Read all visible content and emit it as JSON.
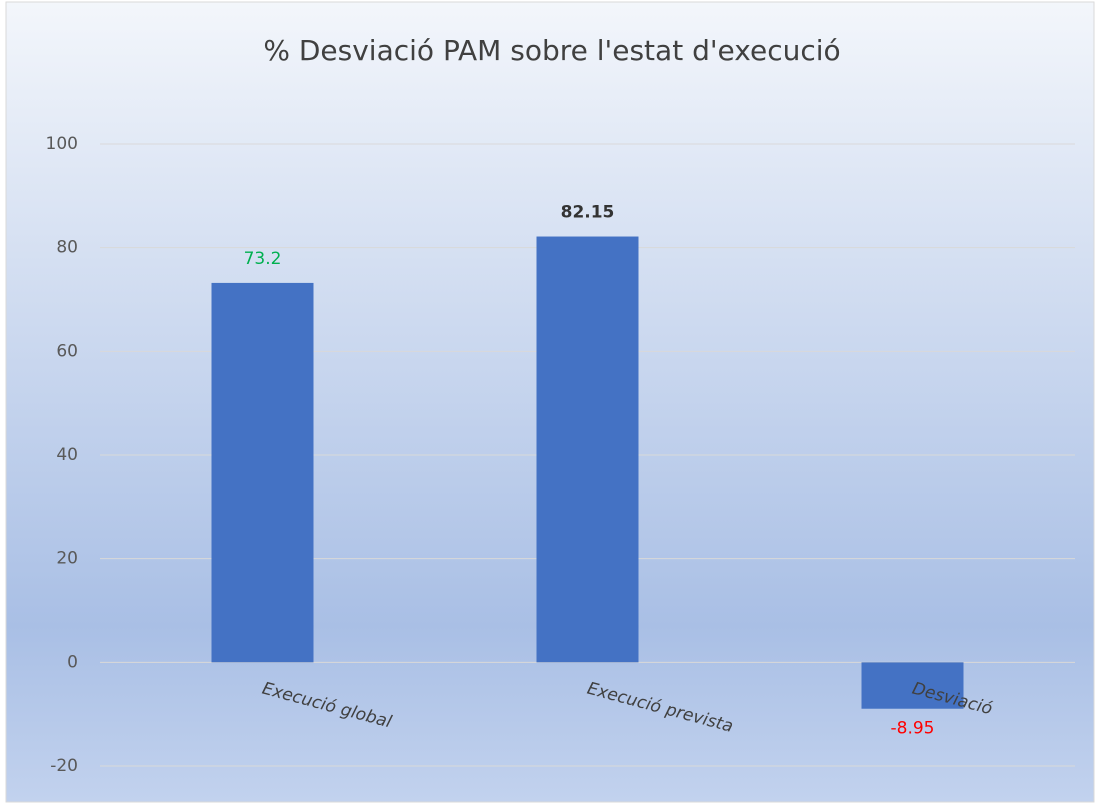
{
  "chart_data": {
    "type": "bar",
    "title": "% Desviació PAM sobre l'estat d'execució",
    "categories": [
      "Execució global",
      "Execució prevista",
      "Desviació"
    ],
    "values": [
      73.2,
      82.15,
      -8.95
    ],
    "color": "#4472c4",
    "value_label_colors": [
      "#00b050",
      "#333333",
      "#ff0000"
    ],
    "value_label_bold": [
      false,
      true,
      false
    ],
    "ylim": [
      -20,
      100
    ],
    "yticks": [
      -20,
      0,
      20,
      40,
      60,
      80,
      100
    ],
    "grid": true
  }
}
